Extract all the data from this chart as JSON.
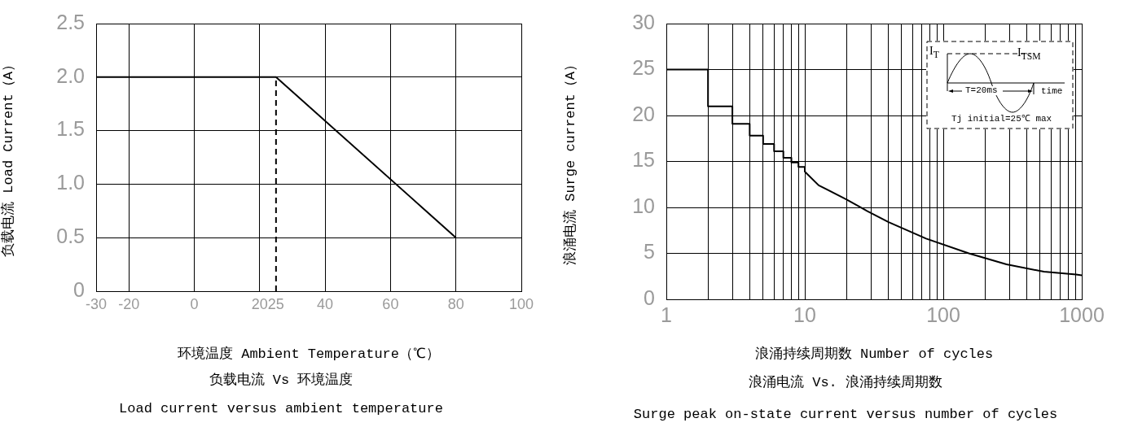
{
  "chart_data": [
    {
      "type": "line",
      "title": "负载电流 Vs 环境温度",
      "subtitle": "Load current versus ambient temperature",
      "xlabel": "环境温度 Ambient Temperature（℃）",
      "ylabel": "负载电流 Load Current（A）",
      "series": [
        {
          "color": "#000000",
          "x": [
            -30,
            25,
            80
          ],
          "values": [
            2,
            2,
            0.5
          ]
        },
        {
          "color": "#000000",
          "x": [
            25,
            25
          ],
          "values": [
            0,
            2
          ],
          "line_style": "dashed"
        }
      ],
      "xlim": [
        -30,
        100
      ],
      "xticks": [
        -30,
        -20,
        0,
        20,
        25,
        40,
        60,
        80,
        100
      ],
      "ylim": [
        0,
        2.5
      ],
      "yticks": [
        0,
        0.5,
        {
          "value": 1,
          "label": "1.0"
        },
        1.5,
        {
          "value": 2,
          "label": "2.0"
        },
        2.5
      ],
      "grid": true,
      "legend": false,
      "marker": "none",
      "line_style": "solid"
    },
    {
      "type": "line",
      "title": "浪涌电流  Vs. 浪涌持续周期数",
      "subtitle": "Surge peak on-state current versus number of cycles",
      "xlabel": "浪涌持续周期数 Number of cycles",
      "ylabel": "浪涌电流 Surge current（A）",
      "annotations": [
        "I$_{T}$",
        "I$_{TSM}$",
        "T=20ms",
        "time",
        "Tj initial=25℃ max"
      ],
      "series": [
        {
          "color": "#000000",
          "x": [
            1,
            2,
            2,
            3,
            3,
            4,
            4,
            5,
            5,
            6,
            6,
            7,
            7,
            8,
            8,
            9,
            9,
            10,
            10,
            12.6,
            19.8,
            28.3,
            40.3,
            75.2,
            153,
            286,
            533,
            911,
            1000
          ],
          "values": [
            25,
            25,
            21,
            21,
            19.1,
            19.1,
            17.8,
            17.8,
            16.9,
            16.9,
            16.1,
            16.1,
            15.4,
            15.4,
            14.9,
            14.9,
            14.4,
            14.4,
            13.9,
            12.4,
            10.9,
            9.6,
            8.4,
            6.6,
            5.0,
            3.8,
            3.0,
            2.7,
            2.6
          ]
        }
      ],
      "log": "x",
      "xlim": [
        1,
        1000
      ],
      "xticks": [
        1,
        {
          "value": 2,
          "label": null
        },
        {
          "value": 3,
          "label": null
        },
        {
          "value": 4,
          "label": null
        },
        {
          "value": 5,
          "label": null
        },
        {
          "value": 6,
          "label": null
        },
        {
          "value": 7,
          "label": null
        },
        {
          "value": 8,
          "label": null
        },
        {
          "value": 9,
          "label": null
        },
        10,
        {
          "value": 20,
          "label": null
        },
        {
          "value": 30,
          "label": null
        },
        {
          "value": 40,
          "label": null
        },
        {
          "value": 50,
          "label": null
        },
        {
          "value": 60,
          "label": null
        },
        {
          "value": 70,
          "label": null
        },
        {
          "value": 80,
          "label": null
        },
        {
          "value": 90,
          "label": null
        },
        100,
        {
          "value": 200,
          "label": null
        },
        {
          "value": 300,
          "label": null
        },
        {
          "value": 400,
          "label": null
        },
        {
          "value": 500,
          "label": null
        },
        {
          "value": 600,
          "label": null
        },
        {
          "value": 700,
          "label": null
        },
        {
          "value": 800,
          "label": null
        },
        {
          "value": 900,
          "label": null
        },
        1000
      ],
      "ylim": [
        0,
        30
      ],
      "yticks": [
        0,
        5,
        10,
        15,
        20,
        25,
        30
      ],
      "grid": true,
      "legend": false,
      "marker": "none",
      "line_style": "solid"
    }
  ]
}
